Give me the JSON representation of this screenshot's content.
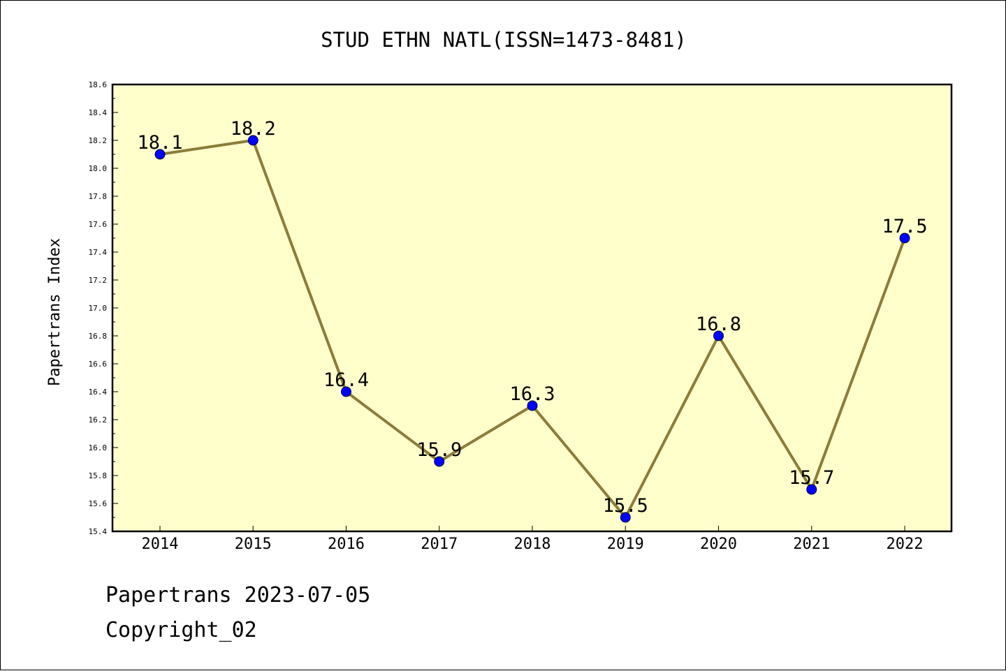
{
  "chart_data": {
    "type": "line",
    "title": "STUD ETHN NATL(ISSN=1473-8481)",
    "xlabel": "",
    "ylabel": "Papertrans Index",
    "categories": [
      "2014",
      "2015",
      "2016",
      "2017",
      "2018",
      "2019",
      "2020",
      "2021",
      "2022"
    ],
    "values": [
      18.1,
      18.2,
      16.4,
      15.9,
      16.3,
      15.5,
      16.8,
      15.7,
      17.5
    ],
    "data_labels": [
      "18.1",
      "18.2",
      "16.4",
      "15.9",
      "16.3",
      "15.5",
      "16.8",
      "15.7",
      "17.5"
    ],
    "ylim": [
      15.4,
      18.6
    ],
    "yticks": [
      "15.4",
      "15.6",
      "15.8",
      "16.0",
      "16.2",
      "16.4",
      "16.6",
      "16.8",
      "17.0",
      "17.2",
      "17.4",
      "17.6",
      "17.8",
      "18.0",
      "18.2",
      "18.4",
      "18.6"
    ],
    "grid": false,
    "legend": "none",
    "colors": {
      "plot_background": "#ffffcc",
      "line": "#8b7d3a",
      "marker": "#0000ff",
      "axes": "#000000"
    }
  },
  "footer": {
    "line1": "Papertrans 2023-07-05",
    "line2": "Copyright_02"
  }
}
